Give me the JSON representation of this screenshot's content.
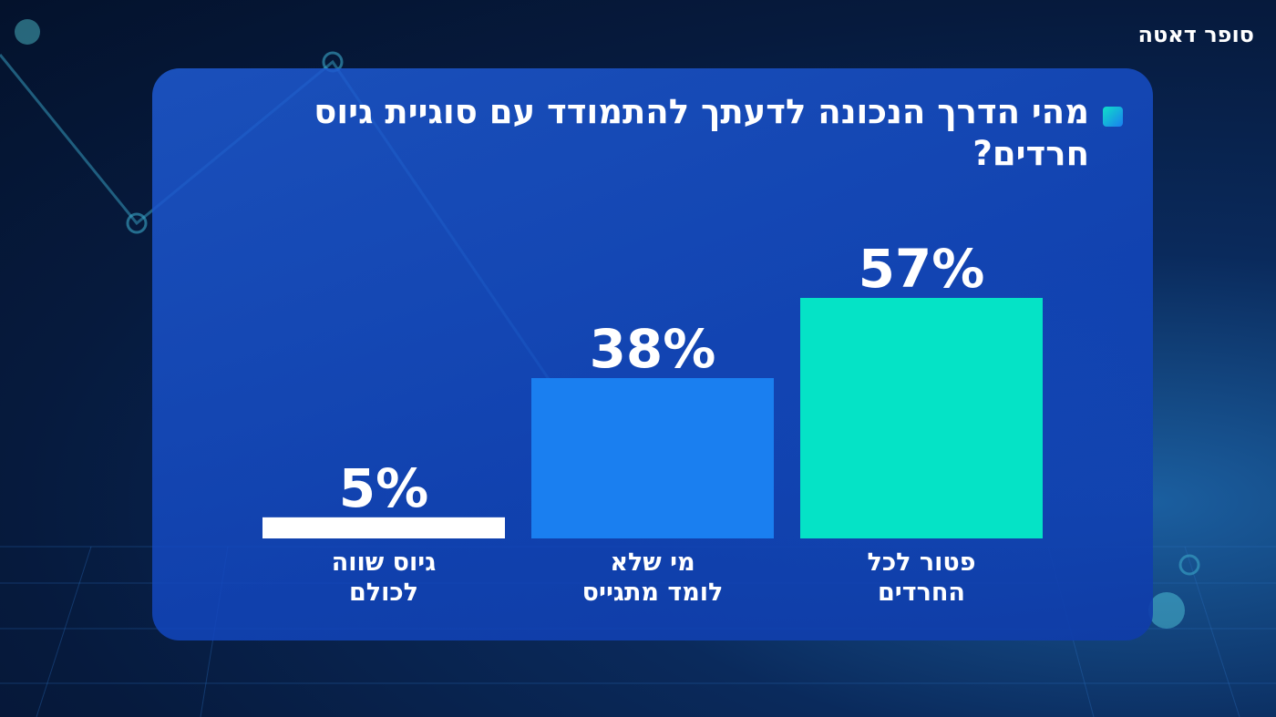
{
  "logo": "סופר דאטה",
  "chart_data": {
    "type": "bar",
    "title": "מהי הדרך הנכונה לדעתך להתמודד עם סוגיית גיוס חרדים?",
    "categories": [
      "פטור לכל\nהחרדים",
      "מי שלא\nלומד מתגייס",
      "גיוס שווה\nלכולם"
    ],
    "values": [
      57,
      38,
      5
    ],
    "value_labels": [
      "57%",
      "38%",
      "5%"
    ],
    "colors": [
      "#05e3c6",
      "#1a7ff0",
      "#ffffff"
    ]
  }
}
